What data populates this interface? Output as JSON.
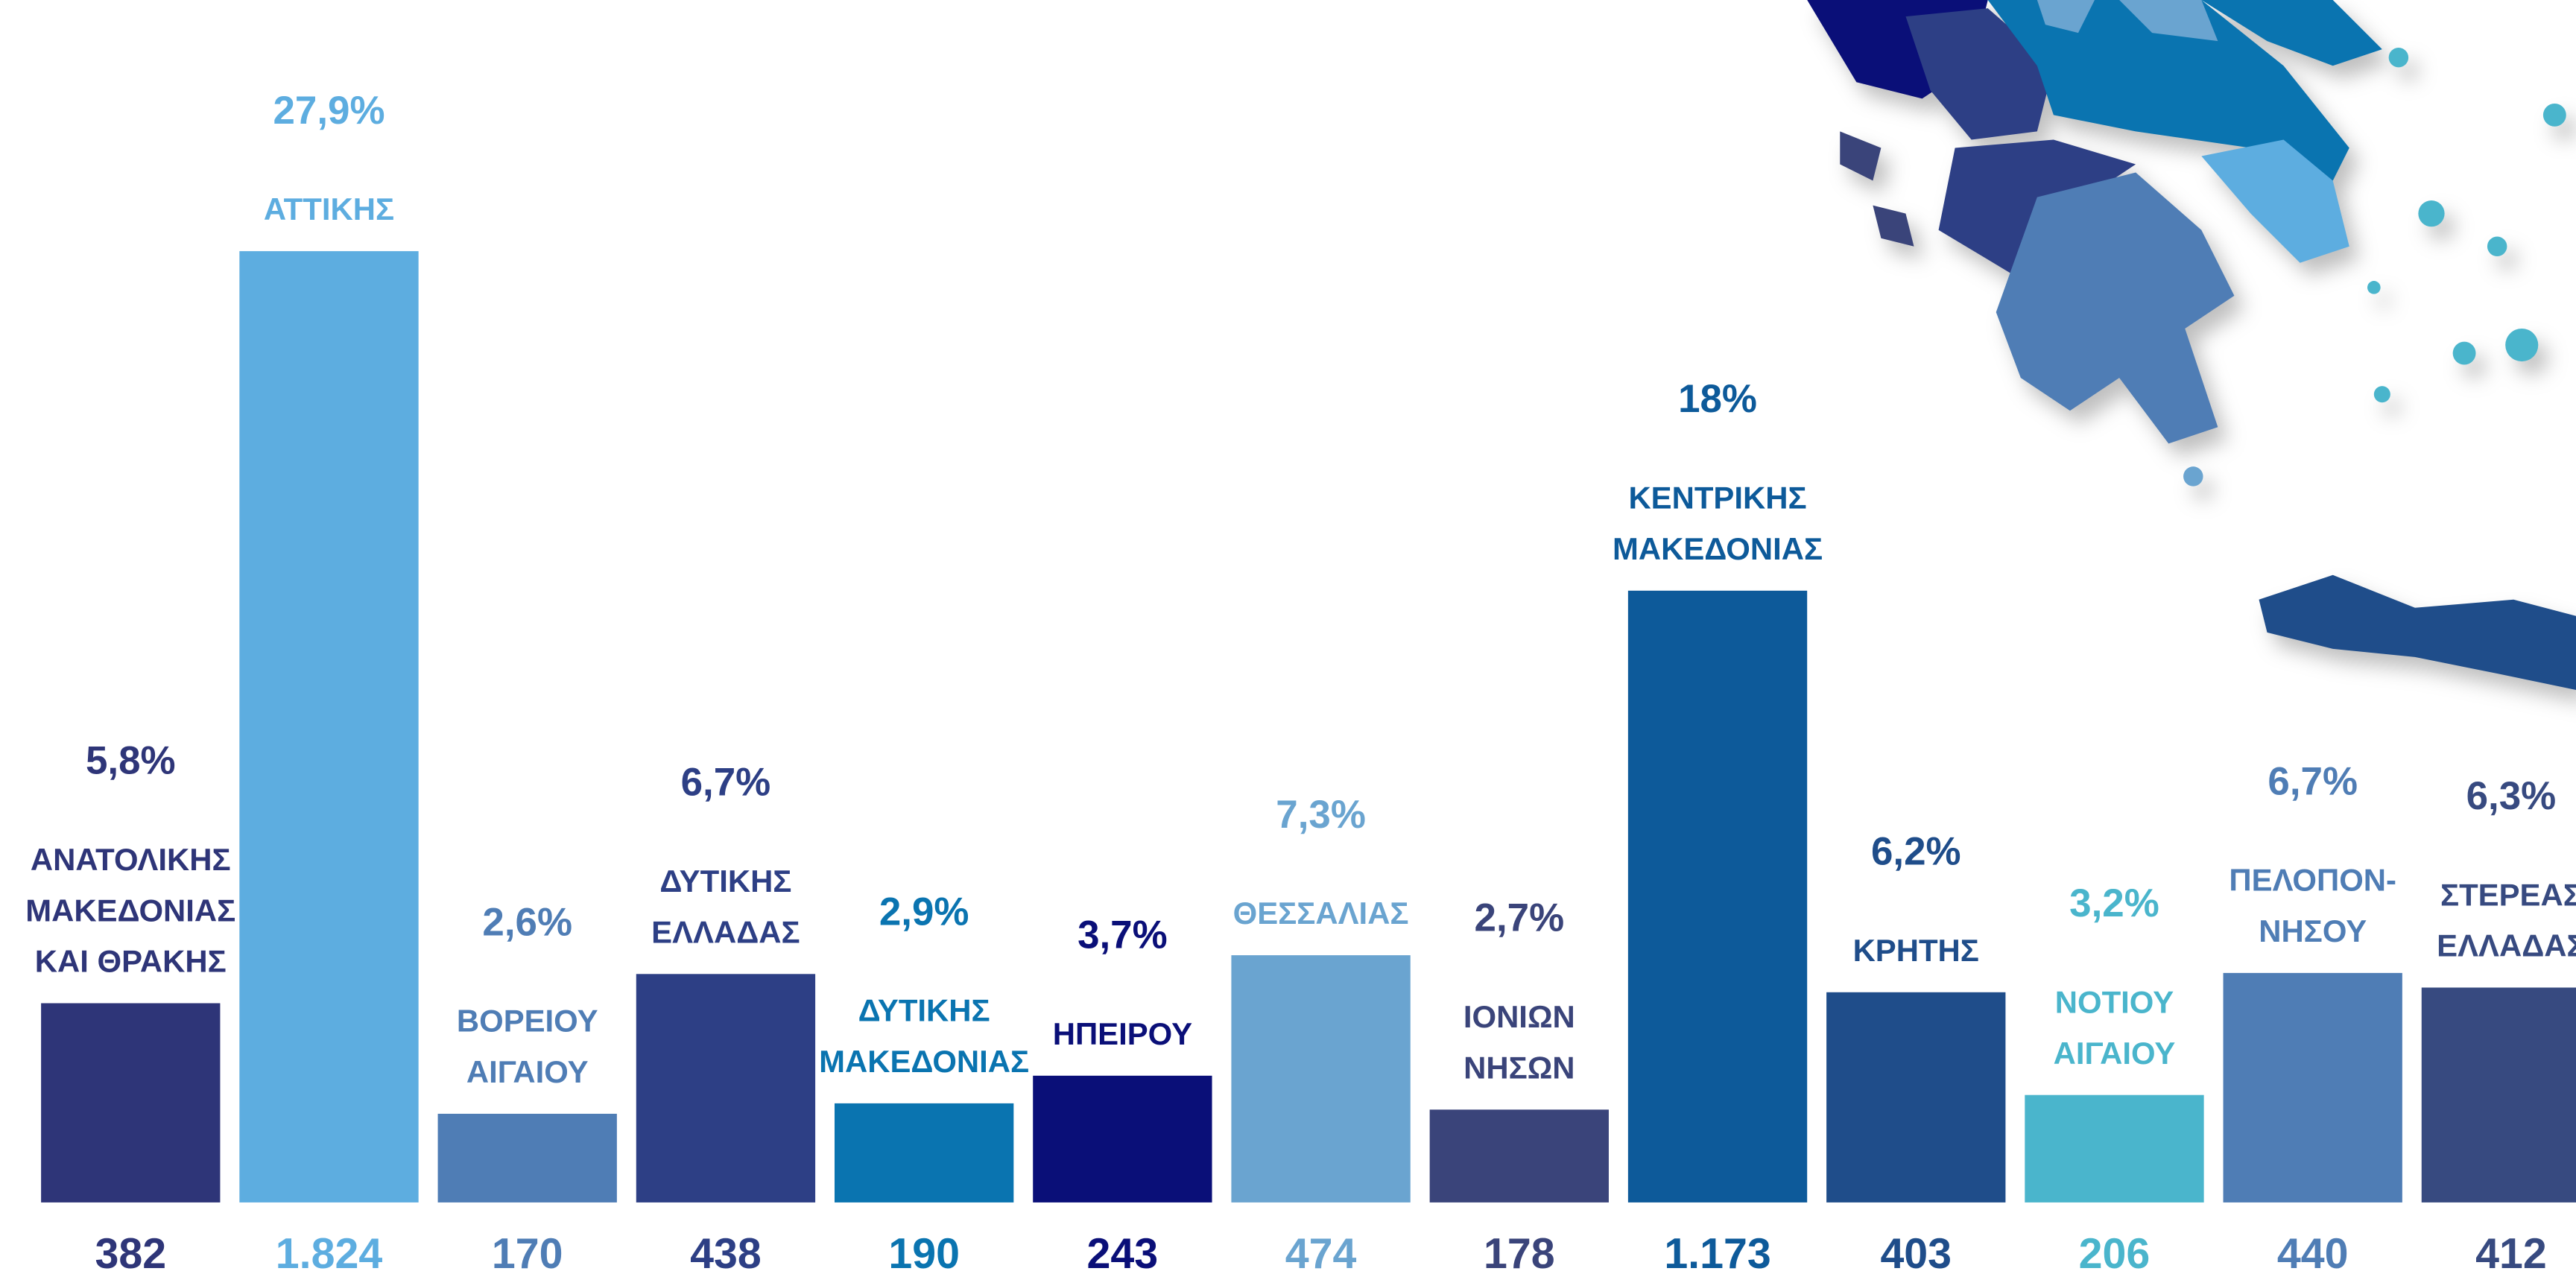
{
  "chart_data": {
    "type": "bar",
    "categories": [
      [
        "ΑΝΑΤΟΛΙΚΗΣ",
        "ΜΑΚΕΔΟΝΙΑΣ",
        "ΚΑΙ ΘΡΑΚΗΣ"
      ],
      [
        "ΑΤΤΙΚΗΣ"
      ],
      [
        "ΒΟΡΕΙΟΥ",
        "ΑΙΓΑΙΟΥ"
      ],
      [
        "ΔΥΤΙΚΗΣ",
        "ΕΛΛΑΔΑΣ"
      ],
      [
        "ΔΥΤΙΚΗΣ",
        "ΜΑΚΕΔΟΝΙΑΣ"
      ],
      [
        "ΗΠΕΙΡΟΥ"
      ],
      [
        "ΘΕΣΣΑΛΙΑΣ"
      ],
      [
        "ΙΟΝΙΩΝ",
        "ΝΗΣΩΝ"
      ],
      [
        "ΚΕΝΤΡΙΚΗΣ",
        "ΜΑΚΕΔΟΝΙΑΣ"
      ],
      [
        "ΚΡΗΤΗΣ"
      ],
      [
        "ΝΟΤΙΟΥ",
        "ΑΙΓΑΙΟΥ"
      ],
      [
        "ΠΕΛΟΠΟΝ-",
        "ΝΗΣΟΥ"
      ],
      [
        "ΣΤΕΡΕΑΣ",
        "ΕΛΛΑΔΑΣ"
      ]
    ],
    "values": [
      382,
      1824,
      170,
      438,
      190,
      243,
      474,
      178,
      1173,
      403,
      206,
      440,
      412
    ],
    "value_labels": [
      "382",
      "1.824",
      "170",
      "438",
      "190",
      "243",
      "474",
      "178",
      "1.173",
      "403",
      "206",
      "440",
      "412"
    ],
    "share_labels": [
      "5,8%",
      "27,9%",
      "2,6%",
      "6,7%",
      "2,9%",
      "3,7%",
      "7,3%",
      "2,7%",
      "18%",
      "6,2%",
      "3,2%",
      "6,7%",
      "6,3%"
    ],
    "colors": [
      "#2e3578",
      "#5dade0",
      "#4f7db5",
      "#2d3f85",
      "#0a74b0",
      "#0a0f78",
      "#6aa4d0",
      "#3a447a",
      "#0d5a9a",
      "#1f4d8a",
      "#4ab5cc",
      "#4f7db5",
      "#374a80"
    ],
    "ylim": [
      0,
      2000
    ]
  }
}
